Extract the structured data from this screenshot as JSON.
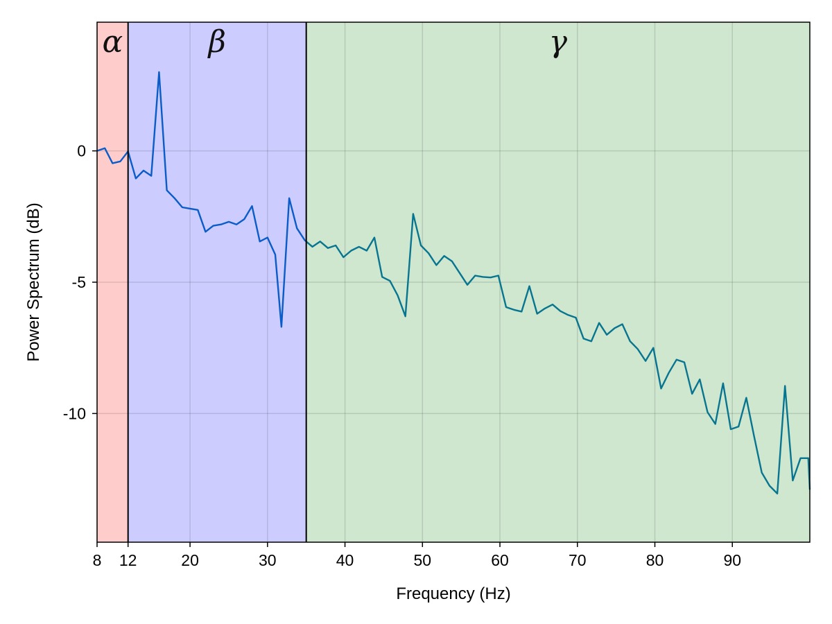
{
  "chart_data": {
    "type": "line",
    "xlabel": "Frequency (Hz)",
    "ylabel": "Power Spectrum (dB)",
    "xlim": [
      8,
      100
    ],
    "ylim": [
      -14.9,
      4.9
    ],
    "x_ticks": [
      8,
      12,
      20,
      30,
      40,
      50,
      60,
      70,
      80,
      90
    ],
    "y_ticks": [
      0,
      -5,
      -10
    ],
    "y_tick_labels": [
      "0",
      "-5",
      "-10"
    ],
    "grid": true,
    "bands": [
      {
        "label": "α",
        "from": 8,
        "to": 12,
        "color": "#ffcccc"
      },
      {
        "label": "β",
        "from": 12,
        "to": 35,
        "color": "#ccccff"
      },
      {
        "label": "γ",
        "from": 35,
        "to": 100,
        "color": "#cfe6cf"
      }
    ],
    "boundaries": [
      12,
      35
    ],
    "series": [
      {
        "color": "#0a5cc8",
        "x": [
          8,
          9,
          10,
          11,
          12,
          13,
          14,
          15,
          16,
          17,
          18,
          19,
          20,
          21,
          22,
          23,
          24,
          25,
          26,
          27,
          28,
          29,
          30,
          31,
          31.8,
          32.8,
          33.8,
          34.8,
          35
        ],
        "y": [
          0,
          0.1,
          -0.47,
          -0.4,
          -0.02,
          -1.05,
          -0.75,
          -0.95,
          3.0,
          -1.5,
          -1.8,
          -2.15,
          -2.2,
          -2.25,
          -3.08,
          -2.85,
          -2.8,
          -2.7,
          -2.8,
          -2.6,
          -2.1,
          -3.45,
          -3.3,
          -3.95,
          -6.7,
          -1.8,
          -2.95,
          -3.4,
          -3.45
        ]
      },
      {
        "color": "#077590",
        "x": [
          35,
          35.8,
          36.8,
          37.8,
          38.8,
          39.8,
          40.8,
          41.8,
          42.8,
          43.8,
          44.8,
          45.8,
          46.8,
          47.8,
          48.8,
          49.8,
          50.8,
          51.8,
          52.8,
          53.8,
          54.8,
          55.8,
          56.8,
          57.8,
          58.8,
          59.8,
          60.8,
          61.8,
          62.8,
          63.8,
          64.8,
          65.8,
          66.8,
          67.8,
          68.8,
          69.8,
          70.8,
          71.8,
          72.8,
          73.8,
          74.8,
          75.8,
          76.8,
          77.8,
          78.8,
          79.8,
          80.8,
          81.8,
          82.8,
          83.8,
          84.8,
          85.8,
          86.8,
          87.8,
          88.8,
          89.8,
          90.8,
          91.8,
          92.8,
          93.8,
          94.8,
          95.8,
          96.8,
          97.8,
          98.8,
          99.8,
          100
        ],
        "y": [
          -3.45,
          -3.65,
          -3.45,
          -3.7,
          -3.6,
          -4.05,
          -3.8,
          -3.65,
          -3.8,
          -3.3,
          -4.8,
          -4.95,
          -5.5,
          -6.3,
          -2.4,
          -3.6,
          -3.9,
          -4.35,
          -4.0,
          -4.2,
          -4.65,
          -5.1,
          -4.75,
          -4.8,
          -4.82,
          -4.75,
          -5.95,
          -6.05,
          -6.12,
          -5.15,
          -6.2,
          -6.0,
          -5.85,
          -6.1,
          -6.25,
          -6.35,
          -7.15,
          -7.25,
          -6.55,
          -7.0,
          -6.75,
          -6.6,
          -7.25,
          -7.55,
          -8.0,
          -7.5,
          -9.05,
          -8.45,
          -7.95,
          -8.05,
          -9.25,
          -8.7,
          -9.95,
          -10.4,
          -8.85,
          -10.6,
          -10.5,
          -9.4,
          -10.85,
          -12.25,
          -12.75,
          -13.05,
          -8.95,
          -12.55,
          -11.7,
          -11.7,
          -12.9
        ]
      }
    ]
  }
}
